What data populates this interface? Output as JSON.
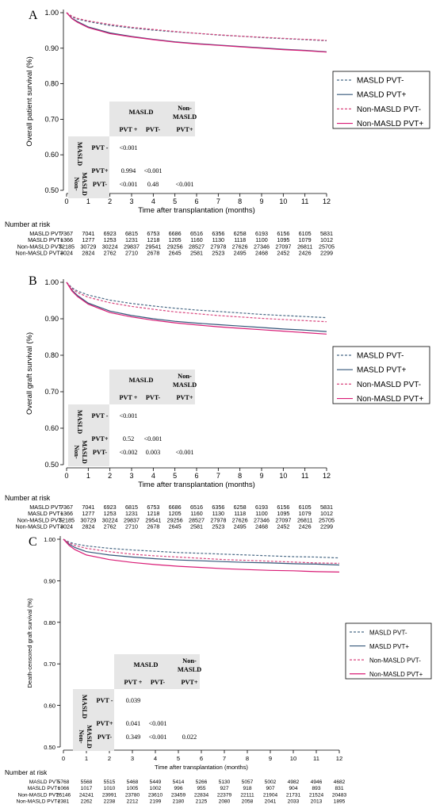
{
  "chart_data": [
    {
      "type": "line",
      "panel_label": "A",
      "ylabel": "Overall patient survival (%)",
      "xlabel": "Time after transplantation (months)",
      "xlim": [
        0,
        12
      ],
      "ylim": [
        0.5,
        1.0
      ],
      "x_ticks": [
        "0",
        "1",
        "2",
        "3",
        "4",
        "5",
        "6",
        "7",
        "8",
        "9",
        "10",
        "11",
        "12"
      ],
      "y_ticks": [
        "0.50",
        "0.60",
        "0.70",
        "0.80",
        "0.90",
        "1.00"
      ],
      "grid": false,
      "legend_placement": "right",
      "series": [
        {
          "name": "MASLD PVT-",
          "color": "#4a6a86",
          "dash": true,
          "x": [
            0,
            0.25,
            0.5,
            1,
            2,
            3,
            4,
            5,
            6,
            7,
            8,
            9,
            10,
            11,
            12
          ],
          "y": [
            1.0,
            0.988,
            0.982,
            0.975,
            0.964,
            0.957,
            0.951,
            0.946,
            0.942,
            0.937,
            0.934,
            0.93,
            0.927,
            0.924,
            0.921
          ]
        },
        {
          "name": "MASLD PVT+",
          "color": "#34577a",
          "dash": false,
          "x": [
            0,
            0.25,
            0.5,
            1,
            2,
            3,
            4,
            5,
            6,
            7,
            8,
            9,
            10,
            11,
            12
          ],
          "y": [
            1.0,
            0.984,
            0.975,
            0.96,
            0.943,
            0.933,
            0.925,
            0.918,
            0.913,
            0.909,
            0.905,
            0.901,
            0.897,
            0.894,
            0.89
          ]
        },
        {
          "name": "Non-MASLD PVT-",
          "color": "#d9477f",
          "dash": true,
          "x": [
            0,
            0.25,
            0.5,
            1,
            2,
            3,
            4,
            5,
            6,
            7,
            8,
            9,
            10,
            11,
            12
          ],
          "y": [
            1.0,
            0.99,
            0.984,
            0.977,
            0.967,
            0.959,
            0.953,
            0.947,
            0.942,
            0.938,
            0.934,
            0.931,
            0.928,
            0.925,
            0.922
          ]
        },
        {
          "name": "Non-MASLD PVT+",
          "color": "#d91c76",
          "dash": false,
          "x": [
            0,
            0.25,
            0.5,
            1,
            2,
            3,
            4,
            5,
            6,
            7,
            8,
            9,
            10,
            11,
            12
          ],
          "y": [
            1.0,
            0.983,
            0.973,
            0.958,
            0.941,
            0.932,
            0.924,
            0.917,
            0.912,
            0.908,
            0.904,
            0.9,
            0.896,
            0.893,
            0.889
          ]
        }
      ],
      "pvalue_table": {
        "col_groups": [
          "MASLD",
          "Non-MASLD"
        ],
        "col_headers": [
          "PVT +",
          "PVT-",
          "PVT+"
        ],
        "row_groups": [
          "MASLD",
          "Non-MASLD"
        ],
        "row_headers": [
          "PVT -",
          "PVT+",
          "PVT-"
        ],
        "cells": [
          [
            "<0.001",
            "",
            ""
          ],
          [
            "0.994",
            "<0.001",
            ""
          ],
          [
            "<0.001",
            "0.48",
            "<0.001"
          ]
        ]
      },
      "risk_table": {
        "title": "Number at risk",
        "rows": [
          {
            "label": "MASLD PVT-",
            "values": [
              "7367",
              "7041",
              "6923",
              "6815",
              "6753",
              "6686",
              "6516",
              "6356",
              "6258",
              "6193",
              "6156",
              "6105",
              "5831"
            ]
          },
          {
            "label": "MASLD PVT+",
            "values": [
              "1366",
              "1277",
              "1253",
              "1231",
              "1218",
              "1205",
              "1160",
              "1130",
              "1118",
              "1100",
              "1095",
              "1079",
              "1012"
            ]
          },
          {
            "label": "Non-MASLD PVT-",
            "values": [
              "32185",
              "30729",
              "30224",
              "29837",
              "29541",
              "29256",
              "28527",
              "27978",
              "27626",
              "27346",
              "27097",
              "26811",
              "25705"
            ]
          },
          {
            "label": "Non-MASLD PVT+",
            "values": [
              "3024",
              "2824",
              "2762",
              "2710",
              "2678",
              "2645",
              "2581",
              "2523",
              "2495",
              "2468",
              "2452",
              "2426",
              "2299"
            ]
          }
        ]
      }
    },
    {
      "type": "line",
      "panel_label": "B",
      "ylabel": "Overall graft survival (%)",
      "xlabel": "Time after transplantation (months)",
      "xlim": [
        0,
        12
      ],
      "ylim": [
        0.5,
        1.0
      ],
      "x_ticks": [
        "0",
        "1",
        "2",
        "3",
        "4",
        "5",
        "6",
        "7",
        "8",
        "9",
        "10",
        "11",
        "12"
      ],
      "y_ticks": [
        "0.50",
        "0.60",
        "0.70",
        "0.80",
        "0.90",
        "1.00"
      ],
      "grid": false,
      "legend_placement": "right",
      "series": [
        {
          "name": "MASLD PVT-",
          "color": "#4a6a86",
          "dash": true,
          "x": [
            0,
            0.25,
            0.5,
            1,
            2,
            3,
            4,
            5,
            6,
            7,
            8,
            9,
            10,
            11,
            12
          ],
          "y": [
            1.0,
            0.985,
            0.976,
            0.965,
            0.951,
            0.942,
            0.935,
            0.929,
            0.924,
            0.92,
            0.916,
            0.912,
            0.909,
            0.906,
            0.903
          ]
        },
        {
          "name": "MASLD PVT+",
          "color": "#34577a",
          "dash": false,
          "x": [
            0,
            0.25,
            0.5,
            1,
            2,
            3,
            4,
            5,
            6,
            7,
            8,
            9,
            10,
            11,
            12
          ],
          "y": [
            1.0,
            0.978,
            0.964,
            0.943,
            0.921,
            0.909,
            0.9,
            0.893,
            0.888,
            0.884,
            0.88,
            0.876,
            0.872,
            0.869,
            0.865
          ]
        },
        {
          "name": "Non-MASLD PVT-",
          "color": "#d9477f",
          "dash": true,
          "x": [
            0,
            0.25,
            0.5,
            1,
            2,
            3,
            4,
            5,
            6,
            7,
            8,
            9,
            10,
            11,
            12
          ],
          "y": [
            1.0,
            0.982,
            0.972,
            0.959,
            0.944,
            0.934,
            0.926,
            0.919,
            0.914,
            0.909,
            0.905,
            0.901,
            0.898,
            0.895,
            0.892
          ]
        },
        {
          "name": "Non-MASLD PVT+",
          "color": "#d91c76",
          "dash": false,
          "x": [
            0,
            0.25,
            0.5,
            1,
            2,
            3,
            4,
            5,
            6,
            7,
            8,
            9,
            10,
            11,
            12
          ],
          "y": [
            1.0,
            0.976,
            0.961,
            0.94,
            0.917,
            0.905,
            0.896,
            0.889,
            0.883,
            0.878,
            0.874,
            0.87,
            0.866,
            0.862,
            0.858
          ]
        }
      ],
      "pvalue_table": {
        "col_groups": [
          "MASLD",
          "Non-MASLD"
        ],
        "col_headers": [
          "PVT +",
          "PVT-",
          "PVT+"
        ],
        "row_groups": [
          "MASLD",
          "Non-MASLD"
        ],
        "row_headers": [
          "PVT -",
          "PVT+",
          "PVT-"
        ],
        "cells": [
          [
            "<0.001",
            "",
            ""
          ],
          [
            "0.52",
            "<0.001",
            ""
          ],
          [
            "<0.002",
            "0.003",
            "<0.001"
          ]
        ]
      },
      "risk_table": {
        "title": "Number at risk",
        "rows": [
          {
            "label": "MASLD PVT-",
            "values": [
              "7367",
              "7041",
              "6923",
              "6815",
              "6753",
              "6686",
              "6516",
              "6356",
              "6258",
              "6193",
              "6156",
              "6105",
              "5831"
            ]
          },
          {
            "label": "MASLD PVT+",
            "values": [
              "1366",
              "1277",
              "1253",
              "1231",
              "1218",
              "1205",
              "1160",
              "1130",
              "1118",
              "1100",
              "1095",
              "1079",
              "1012"
            ]
          },
          {
            "label": "Non-MASLD PVT-",
            "values": [
              "32185",
              "30729",
              "30224",
              "29837",
              "29541",
              "29256",
              "28527",
              "27978",
              "27626",
              "27346",
              "27097",
              "26811",
              "25705"
            ]
          },
          {
            "label": "Non-MASLD PVT+",
            "values": [
              "3024",
              "2824",
              "2762",
              "2710",
              "2678",
              "2645",
              "2581",
              "2523",
              "2495",
              "2468",
              "2452",
              "2426",
              "2299"
            ]
          }
        ]
      }
    },
    {
      "type": "line",
      "panel_label": "C",
      "ylabel": "Death-censored graft survival (%)",
      "xlabel": "Time after transplantation (months)",
      "xlim": [
        0,
        12
      ],
      "ylim": [
        0.5,
        1.0
      ],
      "x_ticks": [
        "0",
        "1",
        "2",
        "3",
        "4",
        "5",
        "6",
        "7",
        "8",
        "9",
        "10",
        "11",
        "12"
      ],
      "y_ticks": [
        "0.50",
        "0.60",
        "0.70",
        "0.80",
        "0.90",
        "1.00"
      ],
      "grid": false,
      "legend_placement": "right",
      "series": [
        {
          "name": "MASLD PVT-",
          "color": "#4a6a86",
          "dash": true,
          "x": [
            0,
            0.25,
            0.5,
            1,
            2,
            3,
            4,
            5,
            6,
            7,
            8,
            9,
            10,
            11,
            12
          ],
          "y": [
            1.0,
            0.993,
            0.989,
            0.984,
            0.978,
            0.974,
            0.971,
            0.968,
            0.966,
            0.964,
            0.962,
            0.96,
            0.958,
            0.957,
            0.955
          ]
        },
        {
          "name": "MASLD PVT+",
          "color": "#34577a",
          "dash": false,
          "x": [
            0,
            0.25,
            0.5,
            1,
            2,
            3,
            4,
            5,
            6,
            7,
            8,
            9,
            10,
            11,
            12
          ],
          "y": [
            1.0,
            0.988,
            0.98,
            0.97,
            0.962,
            0.957,
            0.953,
            0.95,
            0.948,
            0.946,
            0.944,
            0.943,
            0.941,
            0.94,
            0.938
          ]
        },
        {
          "name": "Non-MASLD PVT-",
          "color": "#d9477f",
          "dash": true,
          "x": [
            0,
            0.25,
            0.5,
            1,
            2,
            3,
            4,
            5,
            6,
            7,
            8,
            9,
            10,
            11,
            12
          ],
          "y": [
            1.0,
            0.991,
            0.985,
            0.978,
            0.97,
            0.964,
            0.96,
            0.957,
            0.954,
            0.951,
            0.949,
            0.947,
            0.945,
            0.943,
            0.942
          ]
        },
        {
          "name": "Non-MASLD PVT+",
          "color": "#d91c76",
          "dash": false,
          "x": [
            0,
            0.25,
            0.5,
            1,
            2,
            3,
            4,
            5,
            6,
            7,
            8,
            9,
            10,
            11,
            12
          ],
          "y": [
            1.0,
            0.985,
            0.975,
            0.962,
            0.951,
            0.944,
            0.939,
            0.935,
            0.932,
            0.929,
            0.927,
            0.925,
            0.924,
            0.922,
            0.921
          ]
        }
      ],
      "pvalue_table": {
        "col_groups": [
          "MASLD",
          "Non-MASLD"
        ],
        "col_headers": [
          "PVT +",
          "PVT-",
          "PVT+"
        ],
        "row_groups": [
          "MASLD",
          "Non-MASLD"
        ],
        "row_headers": [
          "PVT -",
          "PVT+",
          "PVT-"
        ],
        "cells": [
          [
            "0.039",
            "",
            ""
          ],
          [
            "0.041",
            "<0.001",
            ""
          ],
          [
            "0.349",
            "<0.001",
            "0.022"
          ]
        ]
      },
      "risk_table": {
        "title": "Number at risk",
        "rows": [
          {
            "label": "MASLD PVT-",
            "values": [
              "5768",
              "5568",
              "5515",
              "5468",
              "5449",
              "5414",
              "5266",
              "5130",
              "5057",
              "5002",
              "4982",
              "4946",
              "4682"
            ]
          },
          {
            "label": "MASLD PVT+",
            "values": [
              "1066",
              "1017",
              "1010",
              "1005",
              "1002",
              "996",
              "955",
              "927",
              "918",
              "907",
              "904",
              "893",
              "831"
            ]
          },
          {
            "label": "Non-MASLD PVT-",
            "values": [
              "25146",
              "24241",
              "23991",
              "23780",
              "23610",
              "23459",
              "22834",
              "22379",
              "22111",
              "21904",
              "21731",
              "21524",
              "20483"
            ]
          },
          {
            "label": "Non-MASLD PVT+",
            "values": [
              "2381",
              "2262",
              "2238",
              "2212",
              "2199",
              "2180",
              "2125",
              "2080",
              "2058",
              "2041",
              "2033",
              "2013",
              "1895"
            ]
          }
        ]
      }
    }
  ]
}
